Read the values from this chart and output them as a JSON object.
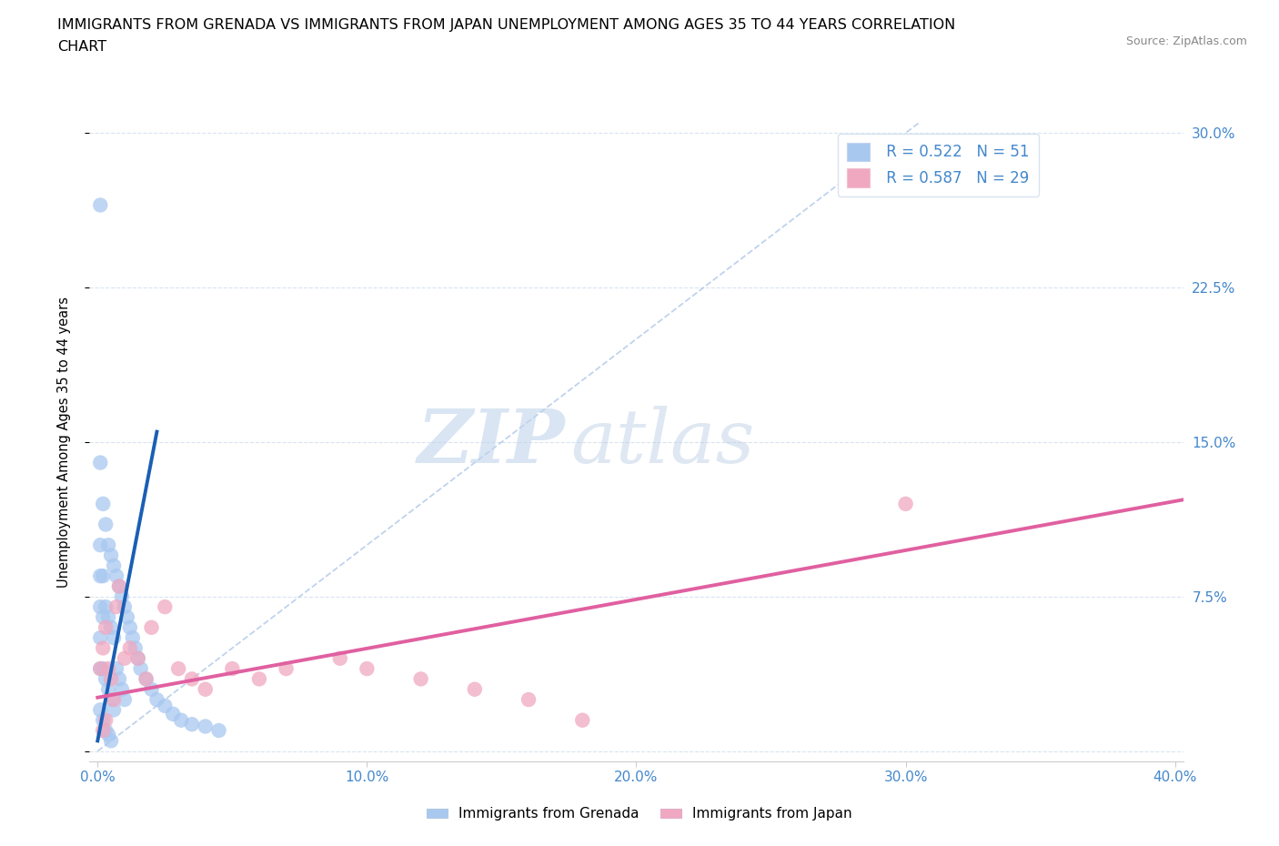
{
  "title_line1": "IMMIGRANTS FROM GRENADA VS IMMIGRANTS FROM JAPAN UNEMPLOYMENT AMONG AGES 35 TO 44 YEARS CORRELATION",
  "title_line2": "CHART",
  "source_text": "Source: ZipAtlas.com",
  "ylabel": "Unemployment Among Ages 35 to 44 years",
  "watermark_zip": "ZIP",
  "watermark_atlas": "atlas",
  "xlim": [
    -0.003,
    0.403
  ],
  "ylim": [
    -0.005,
    0.305
  ],
  "xticks": [
    0.0,
    0.1,
    0.2,
    0.3,
    0.4
  ],
  "xticklabels": [
    "0.0%",
    "10.0%",
    "20.0%",
    "30.0%",
    "40.0%"
  ],
  "yticks": [
    0.0,
    0.075,
    0.15,
    0.225,
    0.3
  ],
  "yticklabels": [
    "",
    "7.5%",
    "15.0%",
    "22.5%",
    "30.0%"
  ],
  "grenada_R": 0.522,
  "grenada_N": 51,
  "japan_R": 0.587,
  "japan_N": 29,
  "grenada_color": "#a8c8f0",
  "japan_color": "#f0a8c0",
  "grenada_line_color": "#1a5fb4",
  "japan_line_color": "#e060a0",
  "ref_line_color": "#b0c8e8",
  "title_fontsize": 11.5,
  "tick_fontsize": 11,
  "legend_fontsize": 12,
  "background_color": "#ffffff",
  "grid_color": "#d8e4f0",
  "tick_color": "#4488cc",
  "grenada_scatter_x": [
    0.001,
    0.001,
    0.001,
    0.001,
    0.001,
    0.002,
    0.002,
    0.002,
    0.002,
    0.003,
    0.003,
    0.003,
    0.004,
    0.004,
    0.004,
    0.005,
    0.005,
    0.005,
    0.006,
    0.006,
    0.006,
    0.007,
    0.007,
    0.008,
    0.008,
    0.009,
    0.009,
    0.01,
    0.01,
    0.011,
    0.012,
    0.013,
    0.014,
    0.015,
    0.016,
    0.018,
    0.02,
    0.022,
    0.025,
    0.028,
    0.031,
    0.035,
    0.04,
    0.045,
    0.001,
    0.001,
    0.002,
    0.003,
    0.004,
    0.001,
    0.005
  ],
  "grenada_scatter_y": [
    0.055,
    0.07,
    0.085,
    0.1,
    0.04,
    0.12,
    0.085,
    0.065,
    0.04,
    0.11,
    0.07,
    0.035,
    0.1,
    0.065,
    0.03,
    0.095,
    0.06,
    0.025,
    0.09,
    0.055,
    0.02,
    0.085,
    0.04,
    0.08,
    0.035,
    0.075,
    0.03,
    0.07,
    0.025,
    0.065,
    0.06,
    0.055,
    0.05,
    0.045,
    0.04,
    0.035,
    0.03,
    0.025,
    0.022,
    0.018,
    0.015,
    0.013,
    0.012,
    0.01,
    0.14,
    0.02,
    0.015,
    0.01,
    0.008,
    0.265,
    0.005
  ],
  "japan_scatter_x": [
    0.001,
    0.002,
    0.003,
    0.004,
    0.005,
    0.006,
    0.007,
    0.008,
    0.01,
    0.012,
    0.015,
    0.018,
    0.02,
    0.025,
    0.03,
    0.035,
    0.04,
    0.05,
    0.06,
    0.07,
    0.09,
    0.1,
    0.12,
    0.14,
    0.16,
    0.18,
    0.3,
    0.002,
    0.003
  ],
  "japan_scatter_y": [
    0.04,
    0.05,
    0.06,
    0.04,
    0.035,
    0.025,
    0.07,
    0.08,
    0.045,
    0.05,
    0.045,
    0.035,
    0.06,
    0.07,
    0.04,
    0.035,
    0.03,
    0.04,
    0.035,
    0.04,
    0.045,
    0.04,
    0.035,
    0.03,
    0.025,
    0.015,
    0.12,
    0.01,
    0.015
  ],
  "grenada_trend_x": [
    0.0,
    0.022
  ],
  "grenada_trend_y": [
    0.005,
    0.155
  ],
  "japan_trend_x": [
    0.0,
    0.403
  ],
  "japan_trend_y": [
    0.026,
    0.122
  ],
  "ref_line_x": [
    0.0,
    0.305
  ],
  "ref_line_y": [
    0.0,
    0.305
  ]
}
